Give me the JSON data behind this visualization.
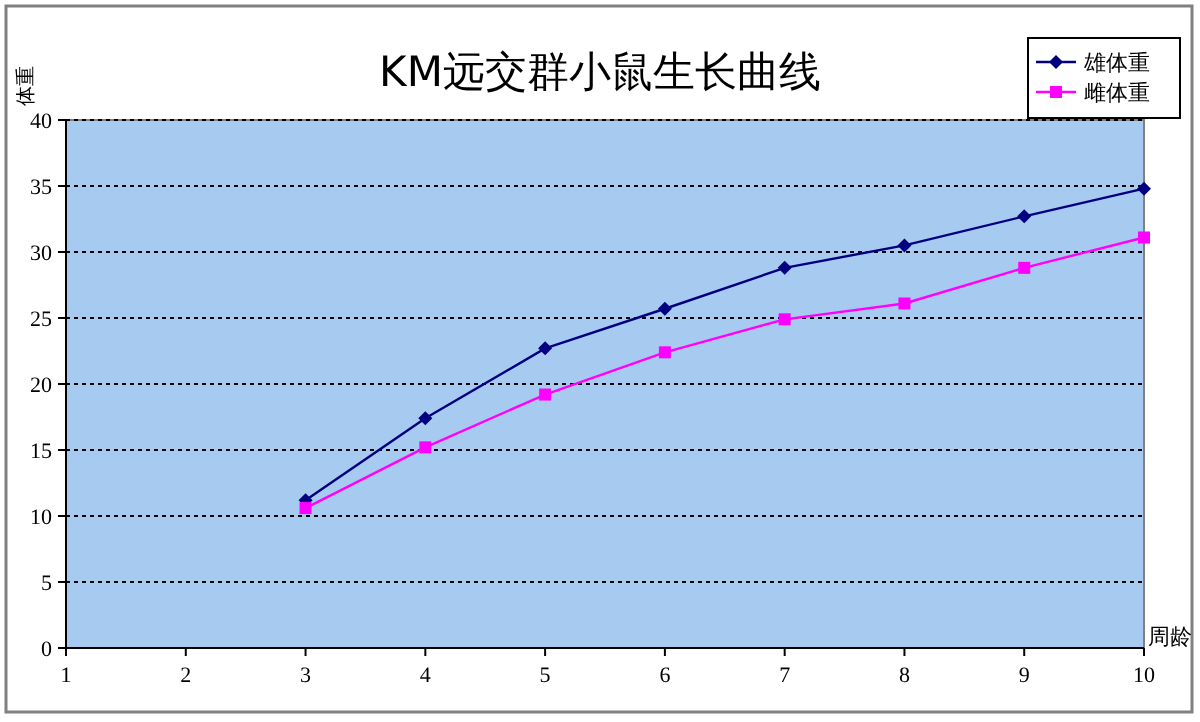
{
  "chart_data": {
    "type": "line",
    "title": "KM远交群小鼠生长曲线",
    "xlabel": "周龄",
    "ylabel": "体重",
    "x": [
      3,
      4,
      5,
      6,
      7,
      8,
      9,
      10
    ],
    "series": [
      {
        "name": "雄体重",
        "color": "#000080",
        "marker": "diamond",
        "values": [
          11.2,
          17.4,
          22.7,
          25.7,
          28.8,
          30.5,
          32.7,
          34.8
        ]
      },
      {
        "name": "雌体重",
        "color": "#ff00ff",
        "marker": "square",
        "values": [
          10.6,
          15.2,
          19.2,
          22.4,
          24.9,
          26.1,
          28.8,
          31.1
        ]
      }
    ],
    "xlim": [
      1,
      10
    ],
    "xticks": [
      1,
      2,
      3,
      4,
      5,
      6,
      7,
      8,
      9,
      10
    ],
    "ylim": [
      0,
      40
    ],
    "yticks": [
      0,
      5,
      10,
      15,
      20,
      25,
      30,
      35,
      40
    ],
    "grid": "y",
    "legend": "top right",
    "line_style": "solid"
  }
}
